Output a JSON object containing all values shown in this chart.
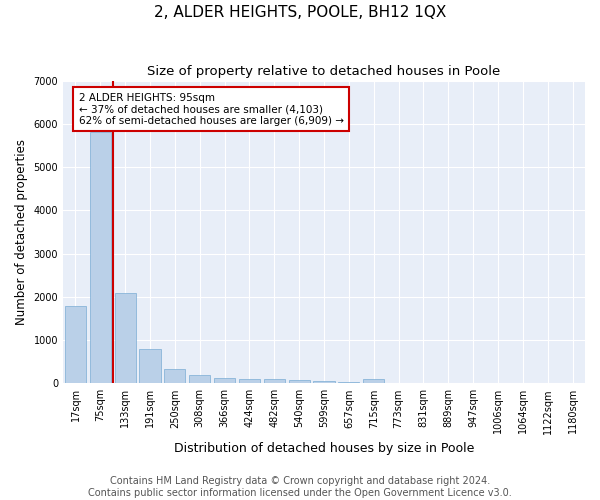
{
  "title": "2, ALDER HEIGHTS, POOLE, BH12 1QX",
  "subtitle": "Size of property relative to detached houses in Poole",
  "xlabel": "Distribution of detached houses by size in Poole",
  "ylabel": "Number of detached properties",
  "bar_labels": [
    "17sqm",
    "75sqm",
    "133sqm",
    "191sqm",
    "250sqm",
    "308sqm",
    "366sqm",
    "424sqm",
    "482sqm",
    "540sqm",
    "599sqm",
    "657sqm",
    "715sqm",
    "773sqm",
    "831sqm",
    "889sqm",
    "947sqm",
    "1006sqm",
    "1064sqm",
    "1122sqm",
    "1180sqm"
  ],
  "bar_values": [
    1780,
    5800,
    2080,
    800,
    340,
    195,
    115,
    105,
    90,
    80,
    50,
    40,
    90,
    0,
    0,
    0,
    0,
    0,
    0,
    0,
    0
  ],
  "bar_color": "#bad0e8",
  "bar_edge_color": "#7aadd4",
  "vline_position": 1.5,
  "annotation_text": "2 ALDER HEIGHTS: 95sqm\n← 37% of detached houses are smaller (4,103)\n62% of semi-detached houses are larger (6,909) →",
  "annotation_box_facecolor": "#ffffff",
  "annotation_box_edgecolor": "#cc0000",
  "vline_color": "#cc0000",
  "ylim": [
    0,
    7000
  ],
  "yticks": [
    0,
    1000,
    2000,
    3000,
    4000,
    5000,
    6000,
    7000
  ],
  "bg_color": "#e8eef8",
  "grid_color": "#ffffff",
  "footer_line1": "Contains HM Land Registry data © Crown copyright and database right 2024.",
  "footer_line2": "Contains public sector information licensed under the Open Government Licence v3.0.",
  "title_fontsize": 11,
  "subtitle_fontsize": 9.5,
  "ylabel_fontsize": 8.5,
  "xlabel_fontsize": 9,
  "tick_fontsize": 7,
  "footer_fontsize": 7,
  "annotation_fontsize": 7.5
}
